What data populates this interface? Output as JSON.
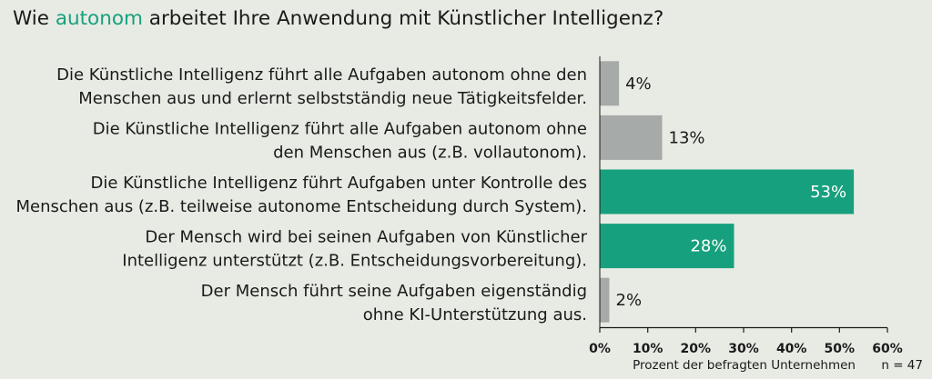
{
  "title": {
    "pre": "Wie ",
    "highlight": "autonom",
    "post": " arbeitet Ihre Anwendung mit Künstlicher Intelligenz?"
  },
  "colors": {
    "highlight": "#17a07e",
    "bar_gray": "#a6aaa8",
    "bar_green": "#17a07e",
    "background": "#e8ebe4"
  },
  "chart_data": {
    "type": "bar",
    "orientation": "horizontal",
    "categories": [
      [
        "Die Künstliche Intelligenz führt alle Aufgaben autonom ohne den",
        "Menschen aus und erlernt selbstständig neue Tätigkeitsfelder."
      ],
      [
        "Die Künstliche Intelligenz führt alle Aufgaben autonom ohne",
        "den Menschen aus (z.B. vollautonom)."
      ],
      [
        "Die Künstliche Intelligenz führt Aufgaben unter Kontrolle des",
        "Menschen aus (z.B. teilweise autonome Entscheidung durch System)."
      ],
      [
        "Der Mensch wird bei seinen Aufgaben von Künstlicher",
        "Intelligenz unterstützt (z.B. Entscheidungsvorbereitung)."
      ],
      [
        "Der Mensch führt seine Aufgaben eigenständig",
        "ohne KI-Unterstützung aus."
      ]
    ],
    "values": [
      4,
      13,
      53,
      28,
      2
    ],
    "value_labels": [
      "4%",
      "13%",
      "53%",
      "28%",
      "2%"
    ],
    "bar_colors": [
      "#a6aaa8",
      "#a6aaa8",
      "#17a07e",
      "#17a07e",
      "#a6aaa8"
    ],
    "xlim": [
      0,
      60
    ],
    "xticks": [
      0,
      10,
      20,
      30,
      40,
      50,
      60
    ],
    "xtick_labels": [
      "0%",
      "10%",
      "20%",
      "30%",
      "40%",
      "50%",
      "60%"
    ],
    "xlabel": "Prozent der befragten Unternehmen",
    "note": "n = 47",
    "grid": false
  }
}
